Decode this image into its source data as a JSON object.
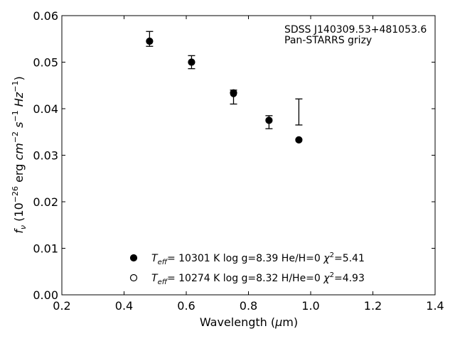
{
  "chart_data": {
    "type": "scatter",
    "xlabel": "Wavelength (μm)",
    "ylabel": "f_ν (10^-26 erg cm^-2 s^-1 Hz^-1)",
    "xlim": [
      0.2,
      1.4
    ],
    "ylim": [
      0.0,
      0.06
    ],
    "x_ticks": [
      "0.2",
      "0.4",
      "0.6",
      "0.8",
      "1.0",
      "1.2",
      "1.4"
    ],
    "y_ticks": [
      "0.00",
      "0.01",
      "0.02",
      "0.03",
      "0.04",
      "0.05",
      "0.06"
    ],
    "grid": false,
    "annotation": {
      "line1": "SDSS J140309.53+481053.6",
      "line2": "Pan-STARRS grizy"
    },
    "observed": {
      "x": [
        0.482,
        0.617,
        0.752,
        0.866,
        0.962
      ],
      "y": [
        0.055,
        0.05,
        0.0425,
        0.0371,
        0.0393
      ],
      "err": [
        0.0016,
        0.0014,
        0.0015,
        0.0014,
        0.0028
      ]
    },
    "series": [
      {
        "label": "Teff= 10301 K log g=8.39 He/H=0 χ2=5.41",
        "marker": "filled",
        "x": [
          0.482,
          0.617,
          0.752,
          0.866,
          0.962
        ],
        "y": [
          0.0545,
          0.05,
          0.0434,
          0.0375,
          0.0333
        ]
      },
      {
        "label": "Teff= 10274 K log g=8.32 H/He=0 χ2=4.93",
        "marker": "open",
        "x": [
          0.482,
          0.617,
          0.752,
          0.866,
          0.962
        ],
        "y": [
          0.0545,
          0.05,
          0.0432,
          0.0375,
          0.0333
        ]
      }
    ],
    "legend": {
      "placement": "lower-center",
      "entries": [
        {
          "teff": "10301",
          "logg": "8.39",
          "comp": "He/H=0",
          "chi2": "5.41"
        },
        {
          "teff": "10274",
          "logg": "8.32",
          "comp": "H/He=0",
          "chi2": "4.93"
        }
      ]
    }
  }
}
